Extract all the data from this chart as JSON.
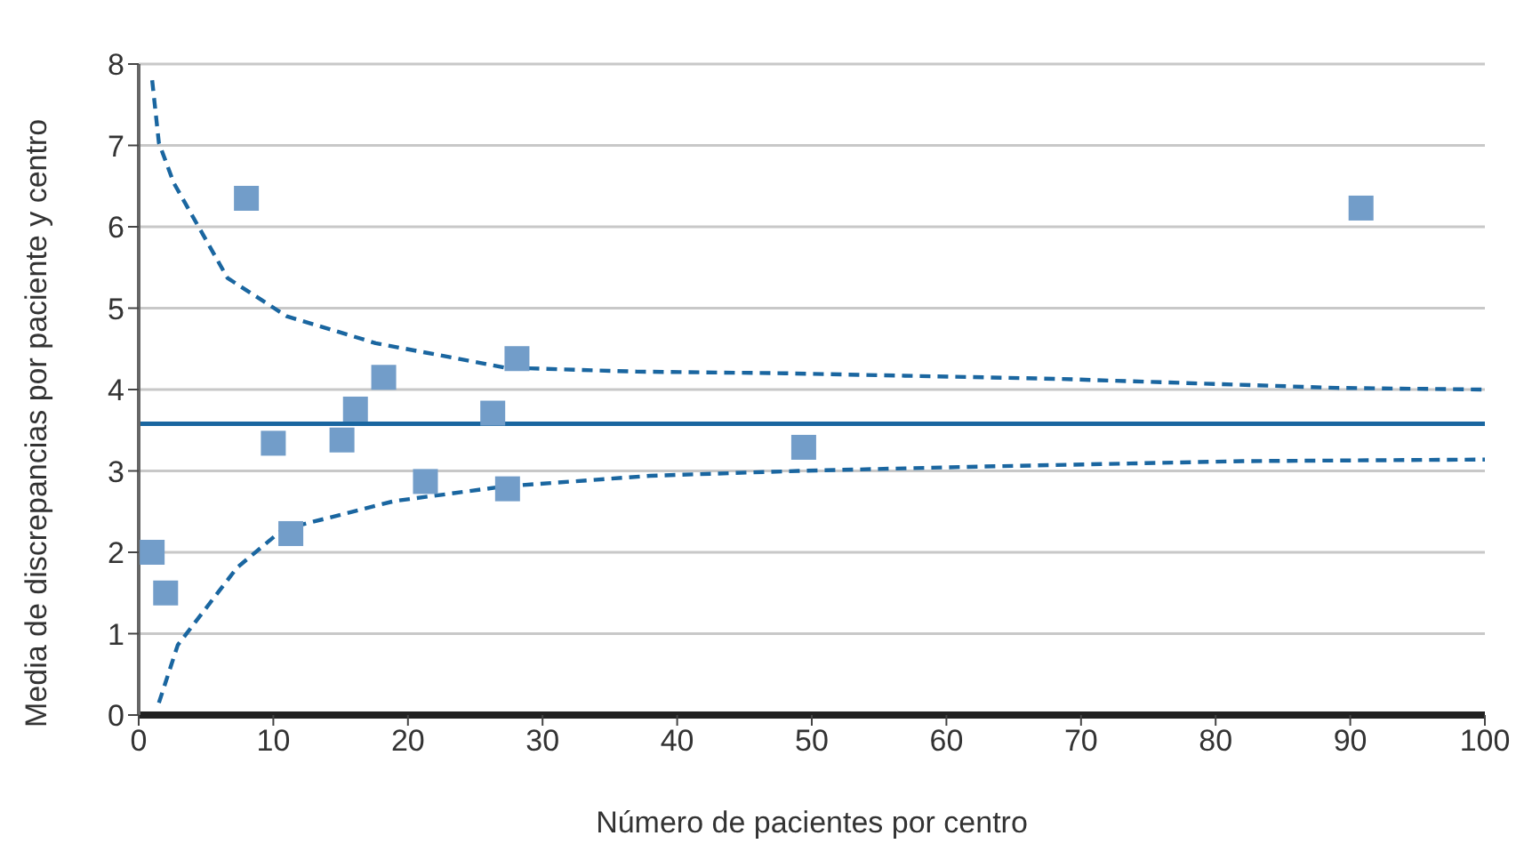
{
  "chart_data": {
    "type": "scatter",
    "xlabel": "Número de pacientes por centro",
    "ylabel": "Media de discrepancias por paciente y centro",
    "xlim": [
      0,
      100
    ],
    "ylim": [
      0,
      8
    ],
    "xticks": [
      0,
      10,
      20,
      30,
      40,
      50,
      60,
      70,
      80,
      90,
      100
    ],
    "yticks": [
      0,
      1,
      2,
      3,
      4,
      5,
      6,
      7,
      8
    ],
    "grid": "y",
    "legend": false,
    "series": [
      {
        "color": "#729dc9",
        "marker": "square",
        "x": [
          1,
          2,
          8,
          10,
          11.3,
          15.1,
          16.1,
          18.2,
          21.3,
          26.3,
          27.4,
          28.1,
          49.4,
          90.8
        ],
        "values": [
          2.0,
          1.5,
          6.35,
          3.34,
          2.23,
          3.38,
          3.76,
          4.15,
          2.87,
          3.71,
          2.78,
          4.38,
          3.29,
          6.23
        ]
      },
      {
        "type": "line",
        "color": "#1a66a0",
        "marker": "none",
        "line_style": "dashed",
        "x": [
          1,
          1.5,
          2.6,
          6.6,
          11,
          17.6,
          27.2,
          37,
          48,
          68.5,
          89,
          100
        ],
        "values": [
          7.8,
          7.03,
          6.54,
          5.37,
          4.9,
          4.57,
          4.27,
          4.22,
          4.2,
          4.13,
          4.02,
          4.0
        ]
      },
      {
        "type": "line",
        "color": "#1a66a0",
        "marker": "none",
        "line_style": "dashed",
        "x": [
          1.5,
          2.9,
          7.3,
          10.7,
          19,
          27.2,
          38,
          49,
          61.6,
          82,
          100
        ],
        "values": [
          0.15,
          0.86,
          1.81,
          2.28,
          2.63,
          2.81,
          2.94,
          3.0,
          3.05,
          3.12,
          3.14
        ]
      }
    ],
    "ref_lines": [
      {
        "axis": "y",
        "value": 3.58,
        "color": "#1a66a0",
        "line_style": "solid"
      }
    ]
  }
}
